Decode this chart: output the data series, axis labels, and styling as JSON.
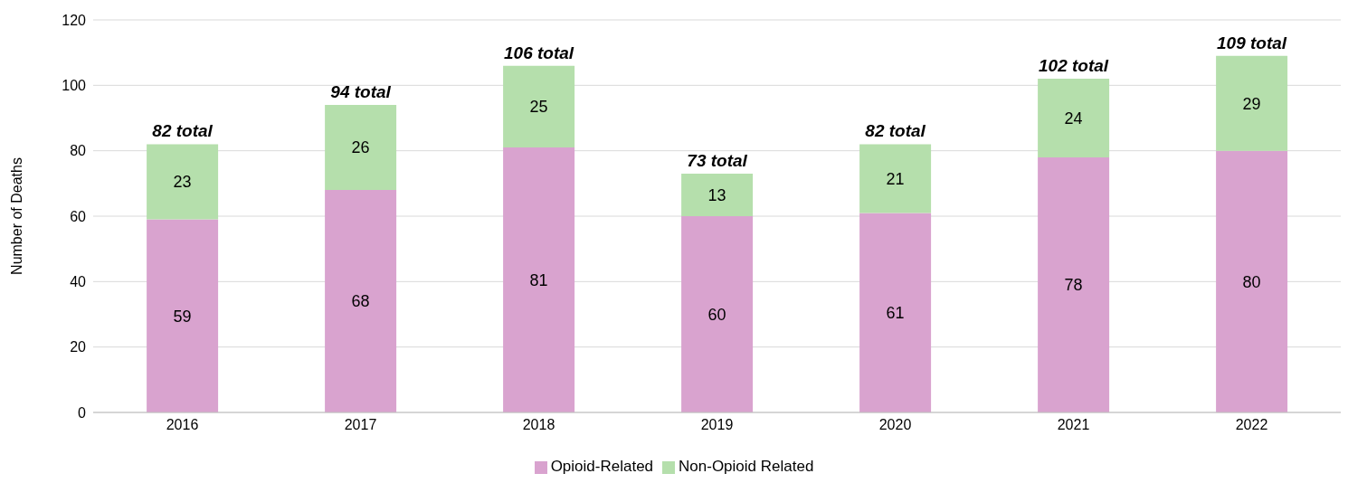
{
  "chart_data": {
    "type": "bar",
    "stacked": true,
    "ylabel": "Number of Deaths",
    "categories": [
      "2016",
      "2017",
      "2018",
      "2019",
      "2020",
      "2021",
      "2022"
    ],
    "series": [
      {
        "name": "Opioid-Related",
        "color": "#d9a3cf",
        "values": [
          59,
          68,
          81,
          60,
          61,
          78,
          80
        ]
      },
      {
        "name": "Non-Opioid Related",
        "color": "#b5dfac",
        "values": [
          23,
          26,
          25,
          13,
          21,
          24,
          29
        ]
      }
    ],
    "totals": [
      "82 total",
      "94 total",
      "106 total",
      "73 total",
      "82 total",
      "102 total",
      "109 total"
    ],
    "ylim": [
      0,
      120
    ],
    "yticks": [
      0,
      20,
      40,
      60,
      80,
      100,
      120
    ],
    "grid": "y",
    "legend": "bottom",
    "data_labels": true
  }
}
